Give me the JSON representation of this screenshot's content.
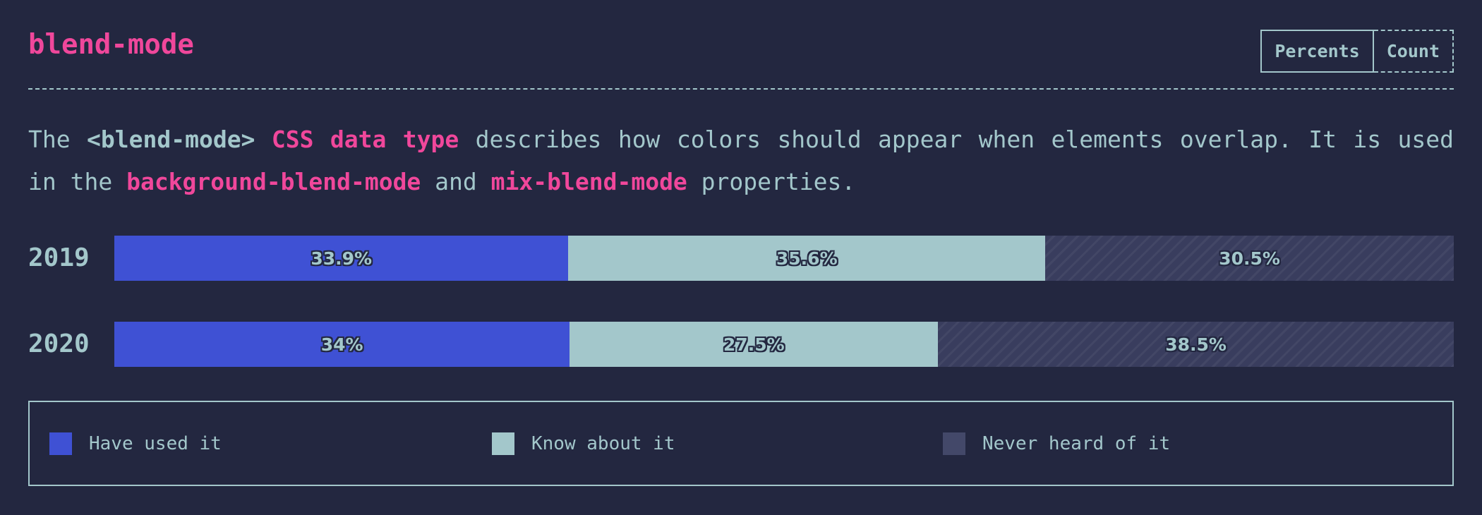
{
  "header": {
    "title": "blend-mode",
    "toggle": [
      {
        "label": "Percents",
        "active": true
      },
      {
        "label": "Count",
        "active": false
      }
    ]
  },
  "description": {
    "part1": "The ",
    "term": "<blend-mode>",
    "space1": " ",
    "link_css_data_type": "CSS data type",
    "part2": " describes how colors should appear when elements overlap. It is used in the ",
    "prop1": "background-blend-mode",
    "part3": " and ",
    "prop2": "mix-blend-mode",
    "part4": " properties."
  },
  "colors": {
    "have_used": "#3f51d4",
    "know_about": "#a3c7cb",
    "never_heard": "#434869",
    "accent": "#f0479b",
    "background": "#232740"
  },
  "chart_data": {
    "type": "bar",
    "orientation": "horizontal-stacked",
    "unit": "percent",
    "categories": [
      "2019",
      "2020"
    ],
    "series": [
      {
        "name": "Have used it",
        "values": [
          33.9,
          34
        ],
        "labels": [
          "33.9%",
          "34%"
        ]
      },
      {
        "name": "Know about it",
        "values": [
          35.6,
          27.5
        ],
        "labels": [
          "35.6%",
          "27.5%"
        ]
      },
      {
        "name": "Never heard of it",
        "values": [
          30.5,
          38.5
        ],
        "labels": [
          "30.5%",
          "38.5%"
        ]
      }
    ],
    "legend_position": "bottom"
  }
}
